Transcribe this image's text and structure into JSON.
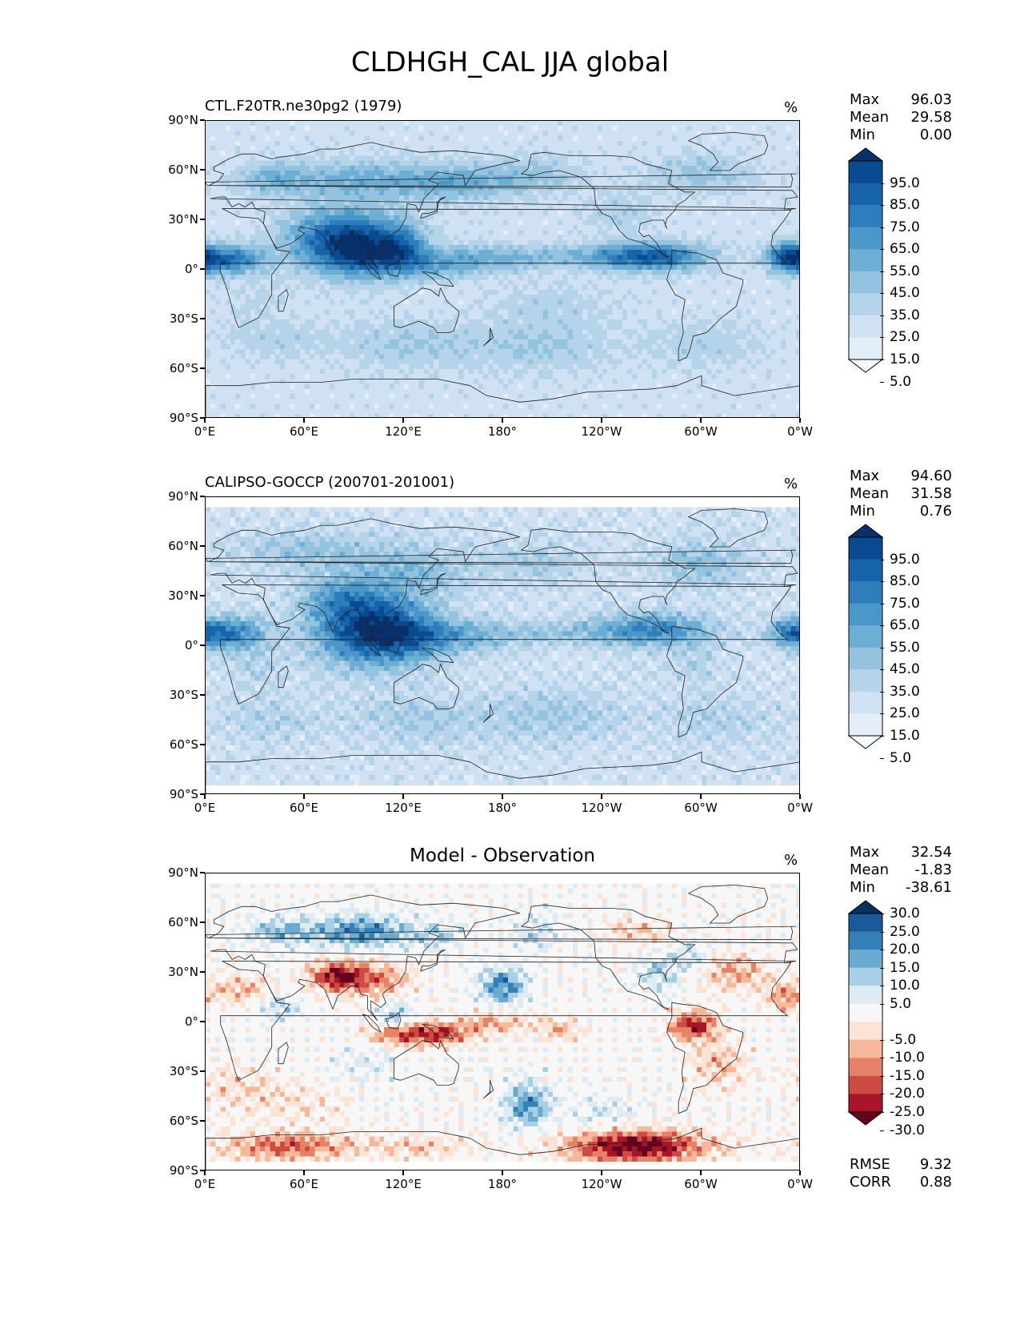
{
  "figure": {
    "title": "CLDHGH_CAL JJA global",
    "lat_labels": [
      "90°N",
      "60°N",
      "30°N",
      "0°",
      "30°S",
      "60°S",
      "90°S"
    ],
    "lon_labels": [
      "0°E",
      "60°E",
      "120°E",
      "180°",
      "120°W",
      "60°W",
      "0°W"
    ]
  },
  "colors": {
    "blues": [
      "#f7fbff",
      "#e3eef9",
      "#cfe1f2",
      "#b5d4e9",
      "#93c3df",
      "#6daed5",
      "#4b97c9",
      "#2f7ebc",
      "#1864aa",
      "#0a4a90",
      "#08306b"
    ],
    "diff": [
      "#67001f",
      "#a81529",
      "#cc4c44",
      "#e58267",
      "#f7b799",
      "#fbe3d6",
      "#f7f7f7",
      "#deebf2",
      "#a9cfe5",
      "#6aacd0",
      "#3480b9",
      "#1b5a9a",
      "#053061"
    ],
    "land_outline": "#222222"
  },
  "panels": [
    {
      "id": "model",
      "title": "CTL.F20TR.ne30pg2 (1979)",
      "title_center": false,
      "units": "%",
      "stats": [
        {
          "label": "Max",
          "value": "96.03"
        },
        {
          "label": "Mean",
          "value": "29.58"
        },
        {
          "label": "Min",
          "value": "0.00"
        }
      ],
      "colorbar": {
        "palette": "blues",
        "labels": [
          "95.0",
          "85.0",
          "75.0",
          "65.0",
          "55.0",
          "45.0",
          "35.0",
          "25.0",
          "15.0",
          "5.0"
        ]
      },
      "metrics": []
    },
    {
      "id": "obs",
      "title": "CALIPSO-GOCCP (200701-201001)",
      "title_center": false,
      "units": "%",
      "stats": [
        {
          "label": "Max",
          "value": "94.60"
        },
        {
          "label": "Mean",
          "value": "31.58"
        },
        {
          "label": "Min",
          "value": "0.76"
        }
      ],
      "colorbar": {
        "palette": "blues",
        "labels": [
          "95.0",
          "85.0",
          "75.0",
          "65.0",
          "55.0",
          "45.0",
          "35.0",
          "25.0",
          "15.0",
          "5.0"
        ]
      },
      "metrics": []
    },
    {
      "id": "diff",
      "title": "Model - Observation",
      "title_center": true,
      "units": "%",
      "stats": [
        {
          "label": "Max",
          "value": "32.54"
        },
        {
          "label": "Mean",
          "value": "-1.83"
        },
        {
          "label": "Min",
          "value": "-38.61"
        }
      ],
      "colorbar": {
        "palette": "diff",
        "labels": [
          "30.0",
          "25.0",
          "20.0",
          "15.0",
          "10.0",
          "5.0",
          "-5.0",
          "-10.0",
          "-15.0",
          "-20.0",
          "-25.0",
          "-30.0"
        ]
      },
      "metrics": [
        {
          "label": "RMSE",
          "value": "9.32"
        },
        {
          "label": "CORR",
          "value": "0.88"
        }
      ]
    }
  ]
}
